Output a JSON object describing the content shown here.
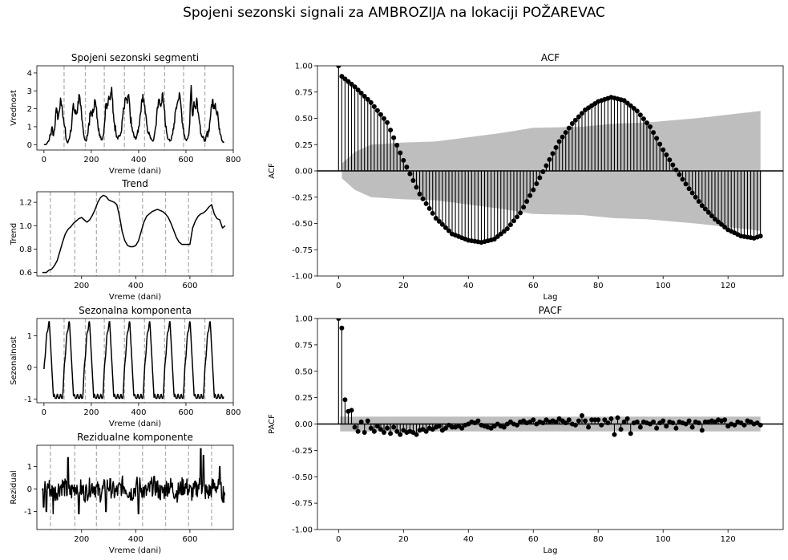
{
  "figure": {
    "title": "Spojeni sezonski signali za AMBROZIJA na lokaciji POŽAREVAC"
  },
  "colors": {
    "line": "#000000",
    "vline": "#b0b0b0",
    "conf": "#bebebe"
  },
  "chart_data": [
    {
      "type": "line",
      "title": "Spojeni sezonski segmenti",
      "xlabel": "Vreme (dani)",
      "ylabel": "Vrednost",
      "xlim": [
        -30,
        800
      ],
      "ylim": [
        -0.3,
        4.4
      ],
      "xticks": [
        0,
        200,
        400,
        600,
        800
      ],
      "yticks": [
        0,
        1,
        2,
        3,
        4
      ],
      "vlines": [
        85,
        175,
        255,
        340,
        425,
        510,
        590,
        680
      ],
      "x": [
        0,
        8,
        14,
        20,
        28,
        34,
        40,
        48,
        54,
        58,
        64,
        70,
        76,
        82,
        88,
        94,
        100,
        106,
        112,
        118,
        124,
        130,
        136,
        142,
        148,
        154,
        160,
        166,
        172,
        178,
        184,
        190,
        196,
        202,
        208,
        214,
        220,
        226,
        232,
        238,
        244,
        250,
        256,
        262,
        268,
        274,
        280,
        286,
        292,
        298,
        304,
        310,
        316,
        322,
        328,
        334,
        340,
        346,
        352,
        358,
        364,
        370,
        376,
        382,
        388,
        394,
        400,
        406,
        412,
        418,
        424,
        430,
        436,
        442,
        448,
        454,
        460,
        466,
        472,
        478,
        484,
        490,
        496,
        502,
        508,
        514,
        520,
        526,
        532,
        538,
        544,
        550,
        556,
        562,
        568,
        574,
        580,
        586,
        592,
        598,
        604,
        610,
        616,
        622,
        628,
        634,
        640,
        646,
        652,
        658,
        664,
        670,
        676,
        682,
        688,
        694,
        700,
        706,
        712,
        718,
        724,
        730,
        736,
        742,
        748,
        754,
        760
      ],
      "y": [
        0.0,
        0.0,
        0.1,
        0.2,
        0.6,
        1.0,
        0.5,
        1.3,
        2.0,
        1.4,
        1.8,
        2.6,
        2.2,
        1.5,
        1.0,
        0.3,
        0.1,
        0.3,
        0.8,
        1.3,
        2.3,
        1.8,
        1.7,
        2.0,
        2.8,
        2.2,
        1.4,
        0.8,
        0.3,
        0.2,
        0.5,
        1.2,
        1.6,
        1.8,
        1.8,
        2.5,
        2.1,
        1.4,
        0.9,
        0.4,
        0.3,
        0.5,
        1.2,
        2.3,
        2.3,
        2.7,
        2.5,
        3.2,
        1.8,
        1.2,
        0.7,
        0.4,
        0.5,
        0.5,
        0.8,
        1.7,
        2.0,
        2.6,
        2.3,
        2.8,
        1.7,
        1.0,
        0.7,
        0.4,
        0.3,
        0.6,
        1.0,
        1.6,
        2.4,
        2.8,
        2.2,
        1.7,
        1.0,
        0.6,
        0.5,
        0.3,
        0.2,
        0.5,
        1.0,
        2.0,
        2.5,
        2.2,
        2.3,
        2.9,
        2.0,
        1.0,
        0.6,
        0.3,
        0.2,
        0.3,
        0.6,
        1.2,
        1.9,
        2.2,
        2.5,
        2.8,
        2.0,
        1.2,
        0.5,
        0.3,
        0.3,
        0.5,
        1.2,
        3.3,
        1.6,
        2.4,
        2.0,
        2.6,
        1.8,
        1.2,
        0.6,
        0.4,
        0.3,
        0.2,
        0.6,
        0.6,
        1.2,
        2.0,
        2.5,
        2.2,
        2.3,
        1.7,
        1.5,
        0.9,
        0.5,
        0.2,
        0.1
      ]
    },
    {
      "type": "line",
      "title": "Trend",
      "xlabel": "Vreme (dani)",
      "ylabel": "Trend",
      "xlim": [
        35,
        760
      ],
      "ylim": [
        0.57,
        1.29
      ],
      "xticks": [
        200,
        400,
        600
      ],
      "yticks": [
        0.6,
        0.8,
        1.0,
        1.2
      ],
      "vlines": [
        85,
        175,
        255,
        340,
        425,
        510,
        595,
        680
      ],
      "x": [
        55,
        70,
        80,
        90,
        100,
        110,
        120,
        130,
        140,
        150,
        160,
        170,
        180,
        190,
        200,
        210,
        220,
        230,
        240,
        250,
        260,
        270,
        280,
        290,
        300,
        310,
        320,
        330,
        340,
        350,
        360,
        370,
        380,
        390,
        400,
        410,
        420,
        430,
        440,
        450,
        460,
        470,
        480,
        490,
        500,
        510,
        520,
        530,
        540,
        550,
        560,
        570,
        580,
        590,
        600,
        610,
        620,
        630,
        640,
        650,
        660,
        670,
        680,
        690,
        700,
        710,
        720,
        730
      ],
      "y": [
        0.6,
        0.6,
        0.62,
        0.63,
        0.66,
        0.7,
        0.78,
        0.86,
        0.93,
        0.97,
        0.99,
        1.02,
        1.04,
        1.06,
        1.07,
        1.05,
        1.03,
        1.05,
        1.09,
        1.14,
        1.2,
        1.24,
        1.26,
        1.25,
        1.22,
        1.21,
        1.2,
        1.18,
        1.08,
        0.95,
        0.87,
        0.83,
        0.82,
        0.82,
        0.83,
        0.87,
        0.95,
        1.03,
        1.08,
        1.1,
        1.12,
        1.13,
        1.14,
        1.13,
        1.12,
        1.1,
        1.07,
        1.02,
        0.96,
        0.9,
        0.86,
        0.84,
        0.84,
        0.84,
        0.84,
        0.98,
        1.04,
        1.08,
        1.1,
        1.11,
        1.13,
        1.16,
        1.18,
        1.1,
        1.06,
        1.05,
        0.98,
        1.0
      ]
    },
    {
      "type": "line",
      "title": "Sezonalna komponenta",
      "xlabel": "Vreme (dani)",
      "ylabel": "Sezonalnost",
      "xlim": [
        -30,
        800
      ],
      "ylim": [
        -1.12,
        1.55
      ],
      "xticks": [
        0,
        200,
        400,
        600,
        800
      ],
      "yticks": [
        -1,
        0,
        1
      ],
      "vlines": [
        85,
        175,
        255,
        340,
        425,
        510,
        595,
        680
      ],
      "period": 85,
      "phase": 40,
      "amplitude": 0.85,
      "offset": 0.2,
      "x_range": [
        0,
        760
      ]
    },
    {
      "type": "line",
      "title": "Rezidualne komponente",
      "xlabel": "Vreme (dani)",
      "ylabel": "Rezidual",
      "xlim": [
        35,
        760
      ],
      "ylim": [
        -1.8,
        1.95
      ],
      "xticks": [
        200,
        400,
        600
      ],
      "yticks": [
        -1,
        0,
        1
      ],
      "vlines": [
        85,
        175,
        255,
        340,
        425,
        510,
        595,
        680
      ],
      "x_range": [
        55,
        730
      ],
      "noise_amplitude": 0.55,
      "spikes": [
        [
          60,
          -0.8
        ],
        [
          70,
          -1.0
        ],
        [
          95,
          -1.1
        ],
        [
          150,
          1.4
        ],
        [
          190,
          -1.1
        ],
        [
          290,
          -1.0
        ],
        [
          410,
          -1.1
        ],
        [
          640,
          1.8
        ],
        [
          650,
          1.5
        ],
        [
          710,
          1.0
        ],
        [
          725,
          -0.6
        ]
      ]
    },
    {
      "type": "stem",
      "title": "ACF",
      "xlabel": "Lag",
      "ylabel": "ACF",
      "xlim": [
        -6.5,
        137
      ],
      "ylim": [
        -1.0,
        1.0
      ],
      "xticks": [
        0,
        20,
        40,
        60,
        80,
        100,
        120
      ],
      "yticks": [
        -1.0,
        -0.75,
        -0.5,
        -0.25,
        0.0,
        0.25,
        0.5,
        0.75,
        1.0
      ],
      "lags": 130,
      "acf_anchors": [
        [
          0,
          1.0
        ],
        [
          1,
          0.9
        ],
        [
          5,
          0.8
        ],
        [
          10,
          0.65
        ],
        [
          15,
          0.46
        ],
        [
          20,
          0.1
        ],
        [
          25,
          -0.22
        ],
        [
          30,
          -0.45
        ],
        [
          35,
          -0.6
        ],
        [
          40,
          -0.66
        ],
        [
          44,
          -0.68
        ],
        [
          48,
          -0.65
        ],
        [
          52,
          -0.55
        ],
        [
          56,
          -0.4
        ],
        [
          60,
          -0.18
        ],
        [
          64,
          0.05
        ],
        [
          68,
          0.28
        ],
        [
          72,
          0.45
        ],
        [
          76,
          0.58
        ],
        [
          80,
          0.66
        ],
        [
          84,
          0.7
        ],
        [
          88,
          0.67
        ],
        [
          92,
          0.57
        ],
        [
          96,
          0.42
        ],
        [
          100,
          0.2
        ],
        [
          104,
          0.01
        ],
        [
          108,
          -0.17
        ],
        [
          112,
          -0.33
        ],
        [
          116,
          -0.46
        ],
        [
          120,
          -0.56
        ],
        [
          124,
          -0.62
        ],
        [
          128,
          -0.64
        ],
        [
          130,
          -0.62
        ]
      ],
      "conf_band": [
        [
          1,
          0.07
        ],
        [
          5,
          0.18
        ],
        [
          10,
          0.25
        ],
        [
          20,
          0.27
        ],
        [
          30,
          0.28
        ],
        [
          50,
          0.36
        ],
        [
          60,
          0.41
        ],
        [
          75,
          0.42
        ],
        [
          85,
          0.45
        ],
        [
          95,
          0.46
        ],
        [
          110,
          0.5
        ],
        [
          130,
          0.57
        ]
      ]
    },
    {
      "type": "stem",
      "title": "PACF",
      "xlabel": "Lag",
      "ylabel": "PACF",
      "xlim": [
        -6.5,
        137
      ],
      "ylim": [
        -1.0,
        1.0
      ],
      "xticks": [
        0,
        20,
        40,
        60,
        80,
        100,
        120
      ],
      "yticks": [
        -1.0,
        -0.75,
        -0.5,
        -0.25,
        0.0,
        0.25,
        0.5,
        0.75,
        1.0
      ],
      "lags": 130,
      "conf": 0.07,
      "values": [
        1.0,
        0.91,
        0.23,
        0.12,
        0.13,
        -0.03,
        -0.07,
        0.02,
        -0.08,
        0.03,
        -0.04,
        -0.07,
        -0.02,
        -0.05,
        -0.08,
        -0.04,
        -0.09,
        -0.03,
        -0.07,
        -0.1,
        -0.06,
        -0.08,
        -0.07,
        -0.08,
        -0.1,
        -0.06,
        -0.05,
        -0.07,
        -0.04,
        -0.05,
        -0.03,
        -0.02,
        -0.06,
        -0.04,
        -0.01,
        -0.03,
        -0.03,
        -0.02,
        -0.04,
        -0.01,
        0.0,
        0.02,
        0.01,
        0.03,
        -0.01,
        -0.02,
        -0.03,
        -0.04,
        -0.02,
        0.0,
        -0.02,
        -0.03,
        0.0,
        0.02,
        0.0,
        -0.01,
        0.02,
        0.03,
        0.01,
        0.02,
        0.04,
        0.0,
        0.02,
        0.01,
        0.04,
        0.02,
        0.03,
        0.02,
        0.05,
        0.03,
        0.01,
        0.04,
        0.0,
        -0.01,
        0.03,
        0.08,
        0.03,
        -0.03,
        0.04,
        0.04,
        0.04,
        -0.01,
        0.04,
        0.01,
        0.05,
        -0.1,
        0.06,
        -0.05,
        0.02,
        0.05,
        -0.09,
        0.01,
        0.02,
        -0.03,
        0.02,
        0.01,
        0.0,
        0.02,
        -0.04,
        0.01,
        0.03,
        -0.02,
        0.02,
        0.01,
        -0.04,
        0.02,
        0.01,
        0.0,
        0.03,
        -0.03,
        0.02,
        0.01,
        -0.06,
        0.02,
        0.02,
        0.03,
        0.02,
        0.04,
        0.03,
        0.04,
        -0.02,
        0.0,
        -0.01,
        0.02,
        0.01,
        -0.01,
        0.03,
        0.02,
        0.0,
        0.01,
        -0.01
      ]
    }
  ]
}
